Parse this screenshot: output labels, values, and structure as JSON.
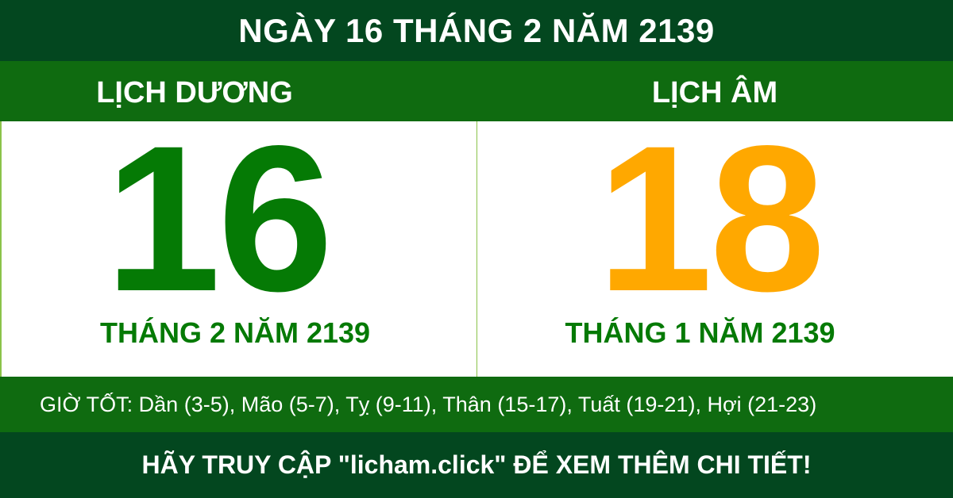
{
  "title": "NGÀY 16 THÁNG 2 NĂM 2139",
  "solar": {
    "label": "LỊCH DƯƠNG",
    "day": "16",
    "month_year": "THÁNG 2 NĂM 2139",
    "color": "#057a05"
  },
  "lunar": {
    "label": "LỊCH ÂM",
    "day": "18",
    "month_year": "THÁNG 1 NĂM 2139",
    "color": "#ffa800"
  },
  "good_hours": "GIỜ TỐT: Dần (3-5), Mão (5-7), Tỵ (9-11), Thân (15-17), Tuất (19-21), Hợi (21-23)",
  "footer": "HÃY TRUY CẬP \"licham.click\" ĐỂ XEM THÊM CHI TIẾT!",
  "colors": {
    "dark_green": "#03471f",
    "green": "#0f6b10"
  }
}
